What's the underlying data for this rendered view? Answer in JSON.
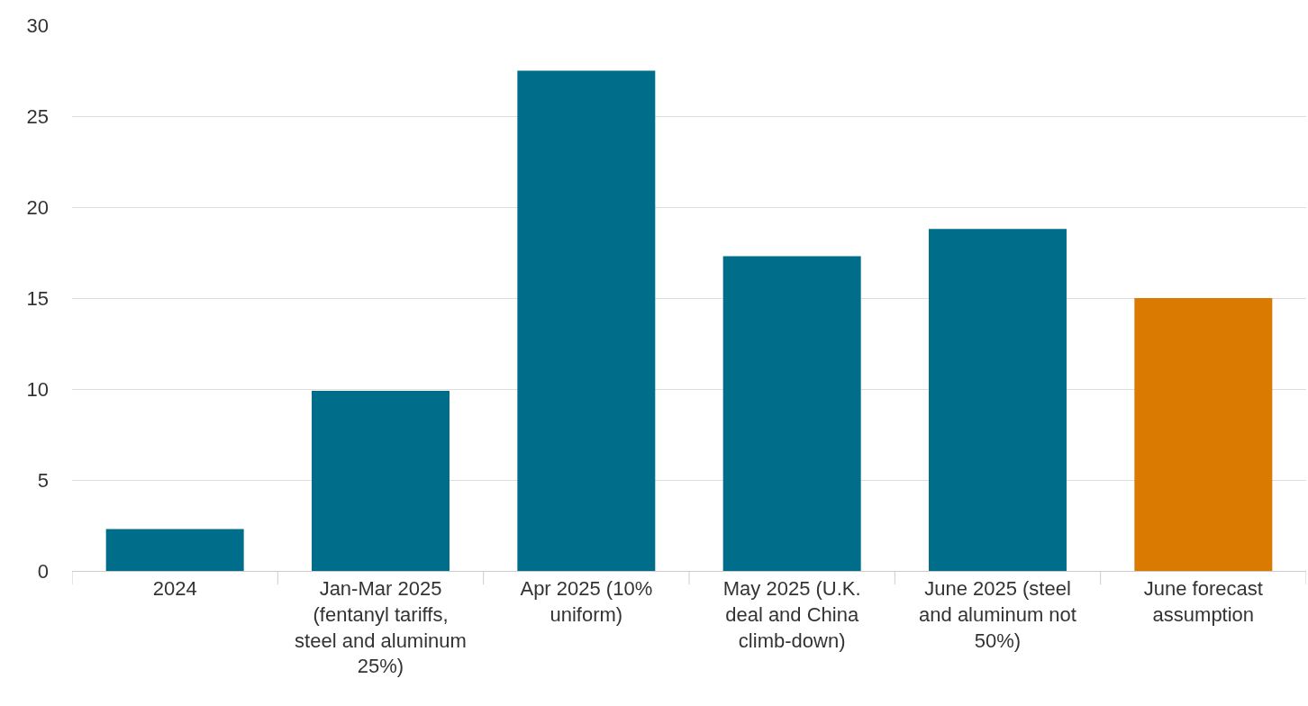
{
  "chart_data": {
    "type": "bar",
    "categories": [
      "2024",
      "Jan-Mar 2025 (fentanyl tariffs, steel and aluminum 25%)",
      "Apr 2025 (10% uniform)",
      "May 2025 (U.K. deal and China climb-down)",
      "June 2025 (steel and aluminum not 50%)",
      "June forecast assumption"
    ],
    "values": [
      2.3,
      9.9,
      27.5,
      17.3,
      18.8,
      15.0
    ],
    "colors": [
      "#006e8a",
      "#006e8a",
      "#006e8a",
      "#006e8a",
      "#006e8a",
      "#db7a00"
    ],
    "ylim": [
      0,
      30
    ],
    "yticks": [
      0,
      5,
      10,
      15,
      20,
      25,
      30
    ],
    "grid": "y",
    "legend": false
  }
}
